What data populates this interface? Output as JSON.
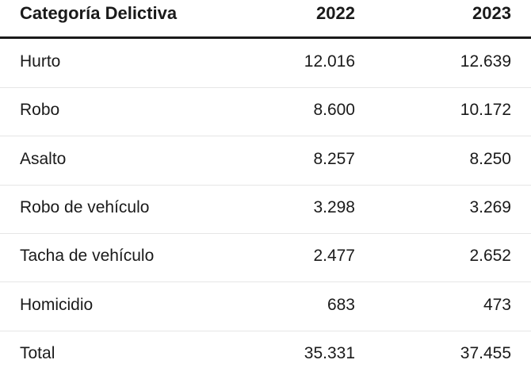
{
  "table": {
    "headers": {
      "category": "Categoría Delictiva",
      "year_2022": "2022",
      "year_2023": "2023"
    },
    "rows": [
      {
        "category": "Hurto",
        "v2022": "12.016",
        "v2023": "12.639"
      },
      {
        "category": "Robo",
        "v2022": "8.600",
        "v2023": "10.172"
      },
      {
        "category": "Asalto",
        "v2022": "8.257",
        "v2023": "8.250"
      },
      {
        "category": "Robo de vehículo",
        "v2022": "3.298",
        "v2023": "3.269"
      },
      {
        "category": "Tacha de vehículo",
        "v2022": "2.477",
        "v2023": "2.652"
      },
      {
        "category": "Homicidio",
        "v2022": "683",
        "v2023": "473"
      },
      {
        "category": "Total",
        "v2022": "35.331",
        "v2023": "37.455"
      }
    ]
  }
}
